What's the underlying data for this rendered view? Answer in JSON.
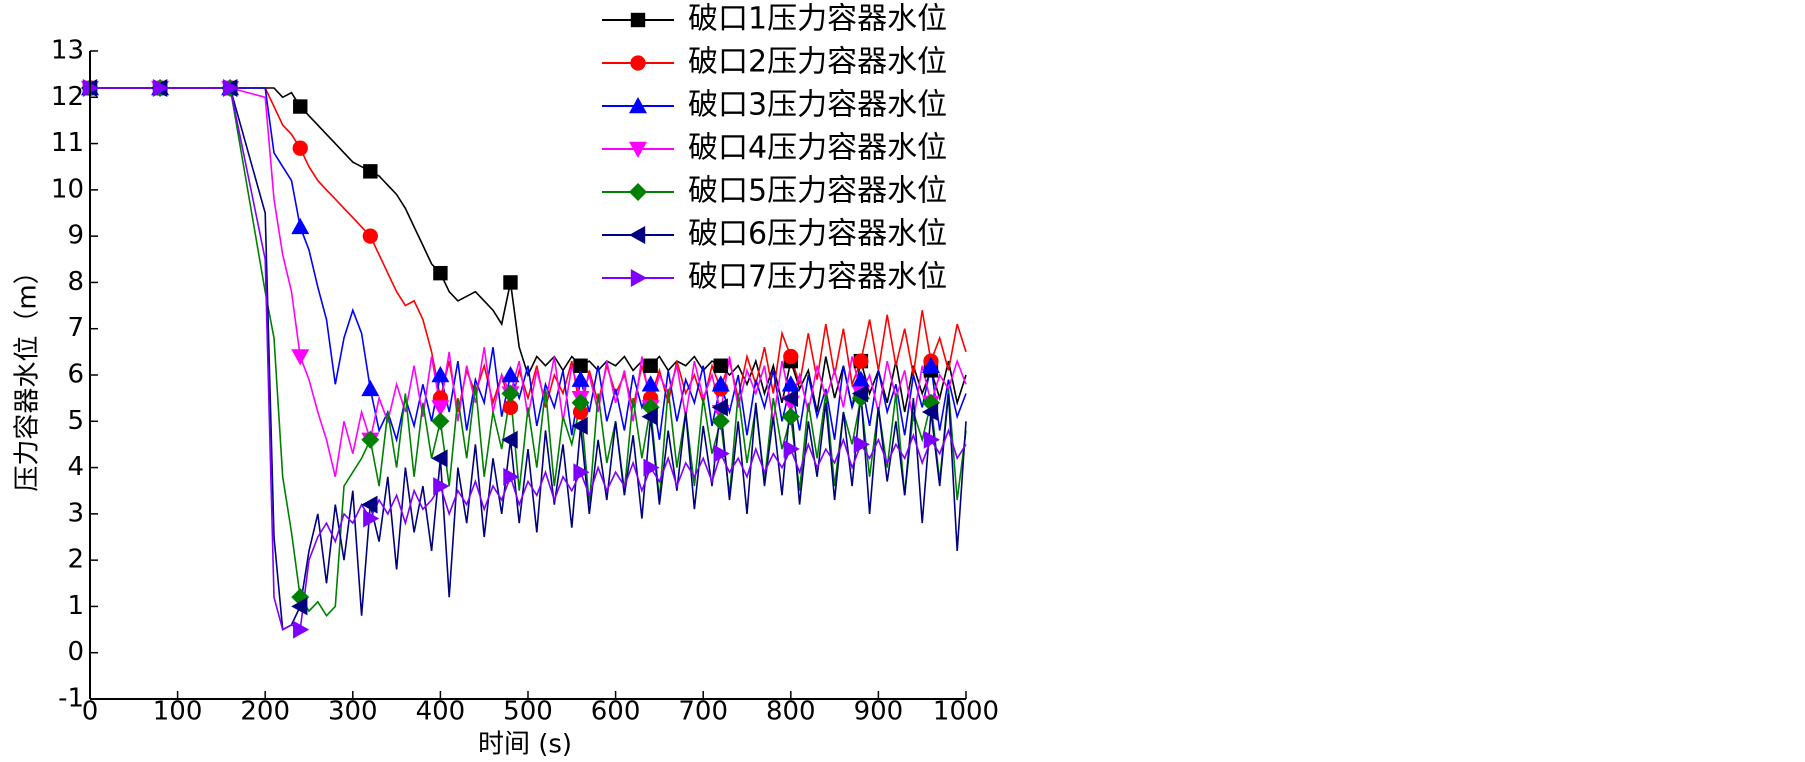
{
  "chart_data": {
    "type": "line",
    "x_label": "时间 (s)",
    "y_label": "压力容器水位（m）",
    "xlim": [
      0,
      1000
    ],
    "ylim": [
      -1,
      13
    ],
    "xticks": [
      0,
      100,
      200,
      300,
      400,
      500,
      600,
      700,
      800,
      900,
      1000
    ],
    "yticks": [
      -1,
      0,
      1,
      2,
      3,
      4,
      5,
      6,
      7,
      8,
      9,
      10,
      11,
      12,
      13
    ],
    "x": [
      0,
      80,
      160,
      200,
      210,
      220,
      230,
      240,
      250,
      260,
      270,
      280,
      290,
      300,
      310,
      320,
      330,
      340,
      350,
      360,
      370,
      380,
      390,
      400,
      410,
      420,
      430,
      440,
      450,
      460,
      470,
      480,
      490,
      500,
      510,
      520,
      530,
      540,
      550,
      560,
      570,
      580,
      590,
      600,
      610,
      620,
      630,
      640,
      650,
      660,
      670,
      680,
      690,
      700,
      710,
      720,
      730,
      740,
      750,
      760,
      770,
      780,
      790,
      800,
      810,
      820,
      830,
      840,
      850,
      860,
      870,
      880,
      890,
      900,
      910,
      920,
      930,
      940,
      950,
      960,
      970,
      980,
      990,
      1000
    ],
    "series": [
      {
        "name": "破口1压力容器水位",
        "color": "#000000",
        "marker": "square",
        "values": [
          12.2,
          12.2,
          12.2,
          12.2,
          12.2,
          12.0,
          12.1,
          11.8,
          11.6,
          11.4,
          11.2,
          11.0,
          10.8,
          10.6,
          10.5,
          10.4,
          10.3,
          10.1,
          9.9,
          9.6,
          9.2,
          8.8,
          8.4,
          8.2,
          7.8,
          7.6,
          7.7,
          7.8,
          7.6,
          7.4,
          7.1,
          8.0,
          6.6,
          6.0,
          6.4,
          6.2,
          6.4,
          6.1,
          6.4,
          6.2,
          6.3,
          6.1,
          6.3,
          6.2,
          6.4,
          6.1,
          6.3,
          6.2,
          6.4,
          6.1,
          6.3,
          6.2,
          6.4,
          6.1,
          6.3,
          6.2,
          6.0,
          6.2,
          5.8,
          6.3,
          5.6,
          6.2,
          5.4,
          6.3,
          5.7,
          6.1,
          5.2,
          6.4,
          5.5,
          6.2,
          5.3,
          6.3,
          5.6,
          6.1,
          5.4,
          6.3,
          5.2,
          6.2,
          5.6,
          6.1,
          5.5,
          6.3,
          5.4,
          6.0
        ]
      },
      {
        "name": "破口2压力容器水位",
        "color": "#ff0000",
        "marker": "circle",
        "values": [
          12.2,
          12.2,
          12.2,
          12.2,
          11.8,
          11.4,
          11.2,
          10.9,
          10.5,
          10.2,
          10.0,
          9.8,
          9.6,
          9.4,
          9.2,
          9.0,
          8.6,
          8.2,
          7.8,
          7.5,
          7.6,
          7.2,
          6.5,
          5.5,
          6.3,
          5.2,
          6.1,
          5.6,
          6.2,
          5.4,
          6.0,
          5.3,
          6.1,
          5.5,
          6.2,
          5.3,
          6.0,
          5.6,
          6.3,
          5.2,
          6.1,
          5.4,
          6.2,
          5.6,
          6.0,
          5.3,
          6.2,
          5.5,
          6.1,
          5.4,
          6.3,
          5.6,
          6.0,
          5.4,
          6.2,
          5.7,
          6.3,
          5.5,
          6.4,
          5.8,
          6.6,
          5.6,
          6.9,
          6.4,
          5.8,
          6.9,
          5.9,
          7.1,
          6.0,
          7.0,
          5.8,
          6.3,
          7.2,
          6.1,
          7.3,
          6.2,
          7.0,
          6.0,
          7.4,
          6.3,
          6.8,
          6.1,
          7.1,
          6.5
        ]
      },
      {
        "name": "破口3压力容器水位",
        "color": "#0000ff",
        "marker": "triangle-up",
        "values": [
          12.2,
          12.2,
          12.2,
          12.2,
          10.8,
          10.5,
          10.2,
          9.2,
          8.7,
          7.9,
          7.2,
          5.8,
          6.8,
          7.4,
          6.9,
          5.7,
          4.8,
          5.2,
          4.6,
          5.5,
          4.9,
          5.8,
          5.0,
          6.0,
          5.2,
          6.3,
          4.8,
          5.9,
          5.4,
          6.6,
          5.1,
          6.0,
          5.5,
          6.2,
          4.9,
          5.8,
          5.3,
          6.1,
          4.7,
          5.9,
          5.2,
          6.2,
          5.0,
          5.7,
          4.8,
          6.0,
          5.3,
          5.8,
          4.6,
          6.1,
          5.0,
          5.9,
          5.4,
          6.2,
          4.9,
          5.8,
          5.2,
          6.0,
          4.7,
          5.9,
          5.3,
          6.1,
          5.0,
          5.8,
          4.8,
          6.0,
          5.1,
          5.7,
          4.6,
          6.2,
          5.3,
          5.9,
          4.9,
          6.1,
          5.2,
          5.8,
          4.7,
          6.0,
          5.3,
          6.2,
          4.8,
          5.9,
          5.1,
          5.6
        ]
      },
      {
        "name": "破口4压力容器水位",
        "color": "#ff00ff",
        "marker": "triangle-down",
        "values": [
          12.2,
          12.2,
          12.2,
          12.0,
          9.8,
          8.6,
          7.8,
          6.4,
          5.9,
          5.2,
          4.6,
          3.8,
          5.0,
          4.3,
          5.2,
          4.6,
          5.5,
          5.0,
          5.8,
          5.2,
          6.2,
          5.1,
          6.4,
          5.3,
          6.5,
          5.0,
          6.2,
          5.4,
          6.6,
          5.2,
          6.0,
          5.6,
          6.3,
          5.1,
          6.1,
          5.4,
          6.4,
          5.0,
          6.2,
          5.5,
          6.0,
          5.2,
          6.3,
          5.4,
          6.1,
          5.0,
          6.4,
          5.3,
          6.0,
          5.6,
          6.2,
          5.1,
          6.3,
          5.5,
          6.0,
          5.2,
          6.4,
          5.3,
          6.1,
          5.6,
          6.2,
          5.0,
          6.3,
          5.4,
          6.0,
          5.2,
          6.2,
          5.5,
          6.1,
          5.3,
          6.4,
          5.6,
          6.0,
          5.2,
          6.3,
          5.5,
          6.1,
          5.0,
          6.2,
          5.4,
          6.0,
          5.7,
          6.3,
          5.8
        ]
      },
      {
        "name": "破口5压力容器水位",
        "color": "#008000",
        "marker": "diamond",
        "values": [
          12.2,
          12.2,
          12.2,
          7.8,
          6.8,
          3.8,
          2.6,
          1.2,
          0.9,
          1.1,
          0.8,
          1.0,
          3.6,
          3.9,
          4.2,
          4.6,
          3.6,
          5.2,
          4.0,
          5.6,
          3.8,
          5.4,
          4.2,
          5.0,
          3.6,
          5.5,
          4.2,
          5.8,
          3.8,
          5.2,
          4.4,
          5.6,
          3.5,
          5.3,
          4.0,
          5.7,
          3.6,
          5.1,
          4.5,
          5.4,
          3.2,
          5.6,
          4.1,
          5.0,
          3.5,
          5.5,
          4.2,
          5.3,
          3.3,
          5.7,
          4.0,
          5.2,
          3.6,
          5.5,
          4.3,
          5.0,
          3.4,
          5.6,
          4.1,
          5.3,
          3.7,
          5.5,
          4.4,
          5.1,
          3.5,
          5.4,
          4.2,
          5.6,
          3.6,
          5.2,
          4.5,
          5.5,
          3.8,
          5.3,
          4.0,
          5.6,
          3.4,
          5.2,
          4.6,
          5.4,
          3.7,
          5.7,
          3.3,
          4.8
        ]
      },
      {
        "name": "破口6压力容器水位",
        "color": "#000080",
        "marker": "triangle-left",
        "values": [
          12.2,
          12.2,
          12.2,
          9.5,
          2.5,
          0.5,
          0.6,
          1.0,
          2.2,
          3.0,
          1.5,
          3.2,
          2.0,
          3.5,
          0.8,
          3.2,
          2.4,
          3.8,
          1.8,
          4.0,
          2.6,
          3.6,
          2.2,
          4.2,
          1.2,
          4.0,
          2.8,
          4.5,
          2.5,
          4.2,
          3.0,
          4.6,
          2.8,
          4.4,
          2.6,
          4.8,
          3.2,
          4.5,
          2.7,
          4.9,
          3.0,
          4.6,
          3.3,
          5.0,
          3.4,
          4.7,
          2.9,
          5.1,
          3.2,
          4.8,
          3.5,
          5.2,
          3.1,
          4.9,
          3.6,
          5.3,
          3.3,
          5.0,
          3.0,
          5.4,
          3.6,
          5.1,
          3.4,
          5.5,
          3.2,
          5.0,
          3.8,
          5.4,
          3.3,
          5.2,
          3.6,
          5.6,
          3.0,
          5.3,
          3.7,
          5.0,
          3.4,
          5.5,
          2.8,
          5.2,
          3.6,
          5.6,
          2.2,
          5.0
        ]
      },
      {
        "name": "破口7压力容器水位",
        "color": "#8000ff",
        "marker": "triangle-right",
        "values": [
          12.2,
          12.2,
          12.2,
          8.5,
          1.2,
          0.5,
          0.6,
          0.5,
          2.0,
          2.5,
          2.8,
          2.4,
          3.0,
          2.8,
          3.2,
          2.9,
          3.3,
          3.0,
          3.4,
          2.8,
          3.5,
          3.1,
          3.3,
          3.6,
          3.0,
          3.5,
          3.2,
          3.7,
          3.1,
          3.6,
          3.3,
          3.8,
          3.2,
          3.7,
          3.4,
          3.9,
          3.3,
          3.8,
          3.5,
          3.9,
          3.4,
          4.0,
          3.5,
          3.9,
          3.6,
          4.1,
          3.5,
          4.0,
          3.7,
          4.2,
          3.6,
          4.1,
          3.8,
          4.2,
          3.7,
          4.3,
          3.9,
          4.2,
          3.8,
          4.4,
          3.9,
          4.3,
          4.0,
          4.4,
          3.9,
          4.5,
          4.0,
          4.4,
          4.1,
          4.6,
          4.0,
          4.5,
          4.2,
          4.6,
          4.1,
          4.5,
          4.2,
          4.7,
          4.1,
          4.6,
          4.3,
          4.8,
          4.2,
          4.5
        ]
      }
    ]
  }
}
